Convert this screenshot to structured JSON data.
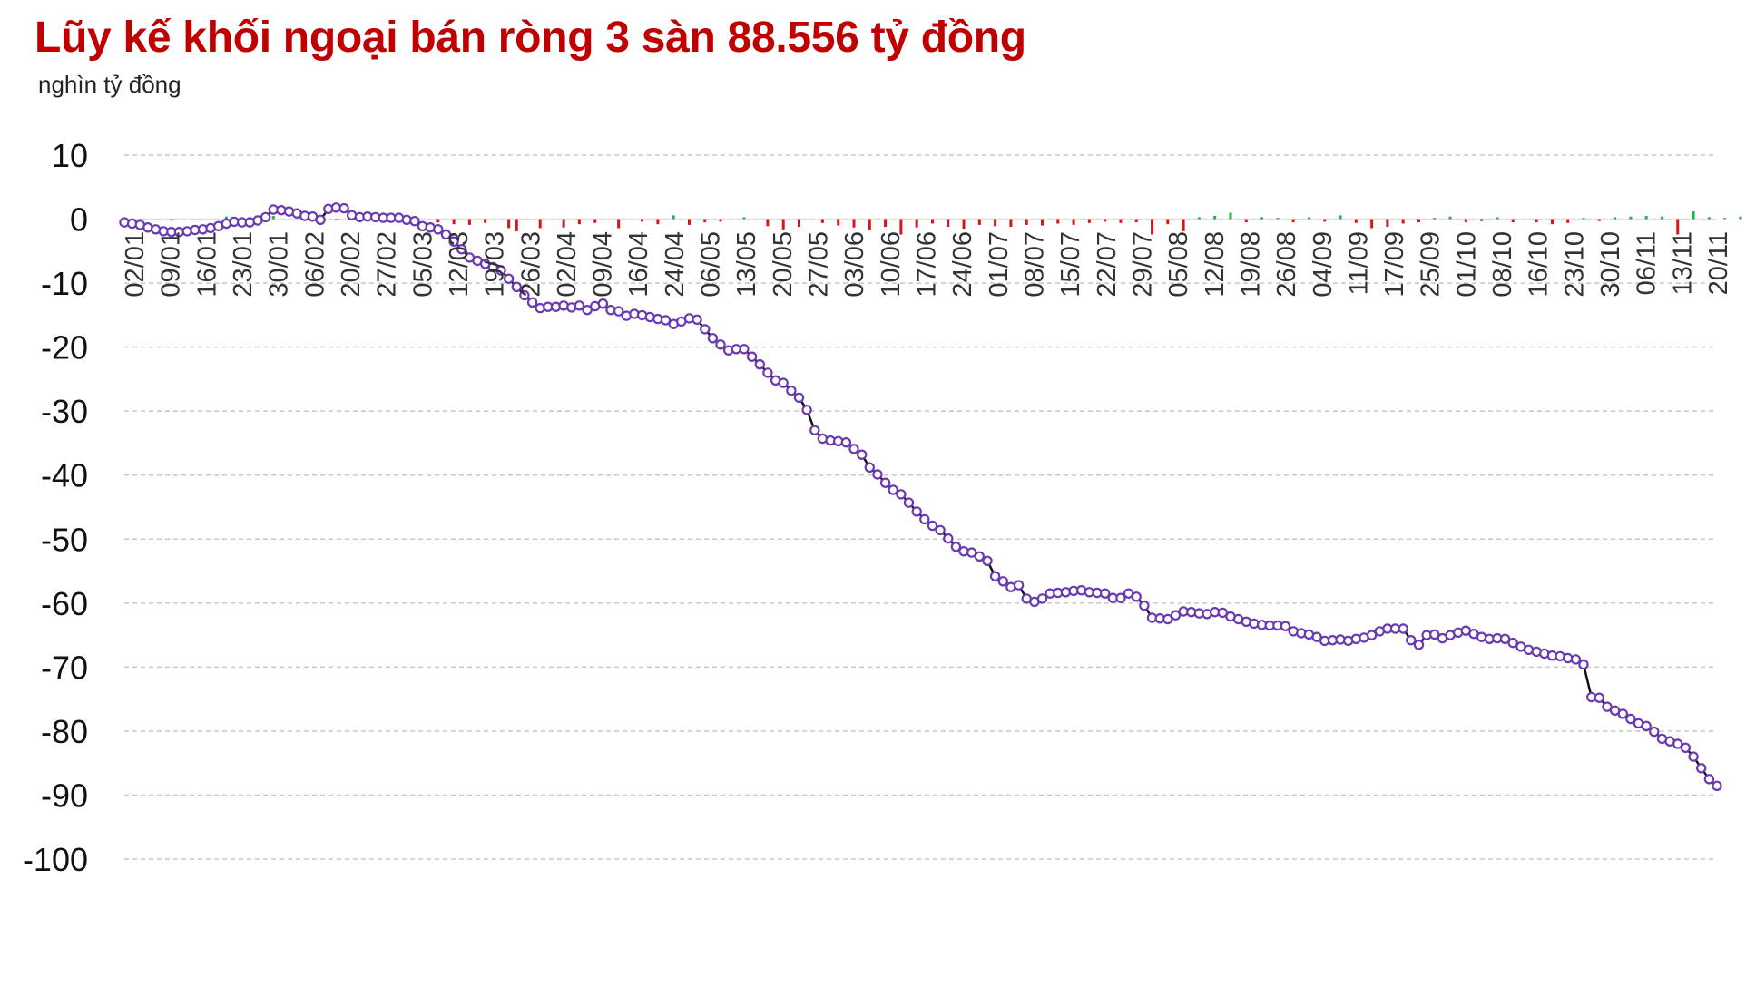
{
  "title": "Lũy kế khối ngoại bán ròng 3 sàn 88.556 tỷ đồng",
  "unit_label": "nghìn tỷ đồng",
  "colors": {
    "title": "#c00000",
    "line": "#111111",
    "marker": "#6a3ab2",
    "bar_positive": "#22b14c",
    "bar_negative": "#d9141b",
    "grid": "#c8c8c8"
  },
  "chart_data": {
    "type": "line+bar",
    "ylim": [
      -100,
      10
    ],
    "yticks": [
      10,
      0,
      -10,
      -20,
      -30,
      -40,
      -50,
      -60,
      -70,
      -80,
      -90,
      -100
    ],
    "grid": "horizontal dashed",
    "x_tick_labels": [
      "02/01",
      "09/01",
      "16/01",
      "23/01",
      "30/01",
      "06/02",
      "20/02",
      "27/02",
      "05/03",
      "12/03",
      "19/03",
      "26/03",
      "02/04",
      "09/04",
      "16/04",
      "24/04",
      "06/05",
      "13/05",
      "20/05",
      "27/05",
      "03/06",
      "10/06",
      "17/06",
      "24/06",
      "01/07",
      "08/07",
      "15/07",
      "22/07",
      "29/07",
      "05/08",
      "12/08",
      "19/08",
      "26/08",
      "04/09",
      "11/09",
      "17/09",
      "25/09",
      "01/10",
      "08/10",
      "16/10",
      "23/10",
      "30/10",
      "06/11",
      "13/11",
      "20/11"
    ],
    "series": [
      {
        "type": "line",
        "description": "cumulative net foreign flow (nghìn tỷ đồng), one value per trading session",
        "values": [
          -0.5,
          -0.7,
          -0.9,
          -1.3,
          -1.6,
          -1.9,
          -2.0,
          -2.0,
          -1.9,
          -1.7,
          -1.6,
          -1.4,
          -1.1,
          -0.7,
          -0.4,
          -0.5,
          -0.5,
          -0.2,
          0.3,
          1.5,
          1.4,
          1.2,
          0.9,
          0.5,
          0.4,
          -0.1,
          1.6,
          1.8,
          1.7,
          0.6,
          0.3,
          0.4,
          0.3,
          0.2,
          0.2,
          0.2,
          -0.1,
          -0.3,
          -1.1,
          -1.3,
          -1.6,
          -2.4,
          -3.5,
          -4.7,
          -6.0,
          -6.5,
          -7.0,
          -7.5,
          -8.0,
          -9.3,
          -10.6,
          -11.9,
          -13.0,
          -13.9,
          -13.7,
          -13.7,
          -13.5,
          -13.8,
          -13.5,
          -14.2,
          -13.6,
          -13.2,
          -14.2,
          -14.4,
          -15.1,
          -14.8,
          -15.0,
          -15.3,
          -15.6,
          -15.8,
          -16.4,
          -16.0,
          -15.5,
          -15.7,
          -17.2,
          -18.6,
          -19.6,
          -20.5,
          -20.3,
          -20.3,
          -21.5,
          -22.7,
          -24.0,
          -25.2,
          -25.6,
          -26.8,
          -27.9,
          -29.8,
          -33.0,
          -34.3,
          -34.6,
          -34.7,
          -34.9,
          -35.9,
          -36.8,
          -38.8,
          -39.9,
          -41.2,
          -42.3,
          -43.0,
          -44.3,
          -45.7,
          -46.9,
          -47.9,
          -48.6,
          -49.9,
          -51.2,
          -51.9,
          -52.1,
          -52.7,
          -53.4,
          -55.8,
          -56.6,
          -57.5,
          -57.2,
          -59.3,
          -59.8,
          -59.3,
          -58.5,
          -58.4,
          -58.3,
          -58.1,
          -58.0,
          -58.3,
          -58.4,
          -58.5,
          -59.2,
          -59.2,
          -58.5,
          -59.0,
          -60.4,
          -62.3,
          -62.4,
          -62.5,
          -61.9,
          -61.3,
          -61.4,
          -61.6,
          -61.7,
          -61.4,
          -61.5,
          -62.1,
          -62.5,
          -62.9,
          -63.2,
          -63.4,
          -63.5,
          -63.5,
          -63.6,
          -64.4,
          -64.7,
          -64.9,
          -65.3,
          -65.9,
          -65.8,
          -65.7,
          -65.9,
          -65.6,
          -65.4,
          -65.0,
          -64.4,
          -64.0,
          -64.0,
          -64.0,
          -65.8,
          -66.5,
          -65.0,
          -64.9,
          -65.5,
          -65.0,
          -64.6,
          -64.3,
          -64.8,
          -65.3,
          -65.6,
          -65.5,
          -65.6,
          -66.2,
          -66.8,
          -67.3,
          -67.6,
          -67.9,
          -68.2,
          -68.3,
          -68.6,
          -68.8,
          -69.6,
          -74.7,
          -74.8,
          -76.2,
          -76.8,
          -77.3,
          -78.1,
          -78.8,
          -79.2,
          -80.1,
          -81.2,
          -81.6,
          -82.0,
          -82.6,
          -84.0,
          -85.8,
          -87.5,
          -88.556
        ]
      },
      {
        "type": "bar",
        "description": "daily net foreign flow (nghìn tỷ đồng), sparse sample",
        "bars": [
          [
            2,
            -0.3
          ],
          [
            6,
            -0.2
          ],
          [
            13,
            0.4
          ],
          [
            19,
            0.5
          ],
          [
            27,
            -0.2
          ],
          [
            40,
            -0.5
          ],
          [
            42,
            -0.8
          ],
          [
            44,
            -0.9
          ],
          [
            46,
            -0.6
          ],
          [
            49,
            -1.4
          ],
          [
            50,
            -1.9
          ],
          [
            53,
            -1.4
          ],
          [
            56,
            -1.3
          ],
          [
            58,
            -0.8
          ],
          [
            60,
            -0.6
          ],
          [
            63,
            -1.4
          ],
          [
            66,
            -0.4
          ],
          [
            68,
            -0.8
          ],
          [
            70,
            0.6
          ],
          [
            72,
            -0.9
          ],
          [
            74,
            -0.5
          ],
          [
            76,
            -0.4
          ],
          [
            79,
            0.3
          ],
          [
            82,
            -1.1
          ],
          [
            84,
            -1.6
          ],
          [
            86,
            -1.2
          ],
          [
            89,
            -0.6
          ],
          [
            91,
            -1.0
          ],
          [
            93,
            -1.3
          ],
          [
            95,
            -1.7
          ],
          [
            97,
            -1.2
          ],
          [
            99,
            -2.4
          ],
          [
            101,
            -1.3
          ],
          [
            103,
            -0.7
          ],
          [
            105,
            -1.2
          ],
          [
            107,
            -1.5
          ],
          [
            109,
            -0.9
          ],
          [
            111,
            -1.1
          ],
          [
            113,
            -1.2
          ],
          [
            115,
            -0.9
          ],
          [
            117,
            -1.0
          ],
          [
            119,
            -0.7
          ],
          [
            121,
            -0.9
          ],
          [
            123,
            -0.6
          ],
          [
            125,
            -0.4
          ],
          [
            127,
            -0.6
          ],
          [
            129,
            -0.5
          ],
          [
            131,
            -2.4
          ],
          [
            133,
            -0.8
          ],
          [
            135,
            -1.9
          ],
          [
            137,
            0.3
          ],
          [
            139,
            0.5
          ],
          [
            141,
            1.0
          ],
          [
            143,
            -0.5
          ],
          [
            145,
            0.3
          ],
          [
            147,
            0.2
          ],
          [
            149,
            -0.5
          ],
          [
            151,
            0.3
          ],
          [
            153,
            -0.4
          ],
          [
            155,
            0.6
          ],
          [
            157,
            -0.6
          ],
          [
            159,
            -1.4
          ],
          [
            161,
            -1.2
          ],
          [
            163,
            -0.7
          ],
          [
            165,
            -0.5
          ],
          [
            167,
            0.2
          ],
          [
            169,
            0.4
          ],
          [
            171,
            -0.5
          ],
          [
            173,
            -0.3
          ],
          [
            175,
            0.3
          ],
          [
            177,
            -0.5
          ],
          [
            180,
            -0.5
          ],
          [
            182,
            -0.8
          ],
          [
            184,
            -0.6
          ],
          [
            186,
            0.2
          ],
          [
            188,
            -0.3
          ],
          [
            190,
            0.3
          ],
          [
            192,
            0.4
          ],
          [
            194,
            0.5
          ],
          [
            196,
            0.4
          ],
          [
            198,
            -2.4
          ],
          [
            200,
            1.2
          ],
          [
            202,
            0.3
          ],
          [
            204,
            0.2
          ],
          [
            206,
            0.4
          ],
          [
            208,
            -0.6
          ],
          [
            210,
            -0.5
          ],
          [
            212,
            0.3
          ],
          [
            214,
            -0.5
          ],
          [
            216,
            -0.6
          ],
          [
            218,
            -0.4
          ],
          [
            220,
            -0.3
          ],
          [
            222,
            -0.2
          ],
          [
            224,
            -0.3
          ],
          [
            226,
            -0.2
          ],
          [
            228,
            -5.2
          ],
          [
            230,
            -0.8
          ],
          [
            232,
            -0.5
          ],
          [
            234,
            -0.7
          ],
          [
            236,
            -0.6
          ],
          [
            238,
            -0.4
          ],
          [
            240,
            -0.9
          ],
          [
            242,
            -1.0
          ],
          [
            244,
            -0.8
          ],
          [
            246,
            -0.4
          ],
          [
            248,
            -1.2
          ],
          [
            249,
            -1.4
          ],
          [
            250,
            -1.5
          ],
          [
            251,
            -1.7
          ],
          [
            252,
            -1.2
          ]
        ]
      }
    ]
  }
}
